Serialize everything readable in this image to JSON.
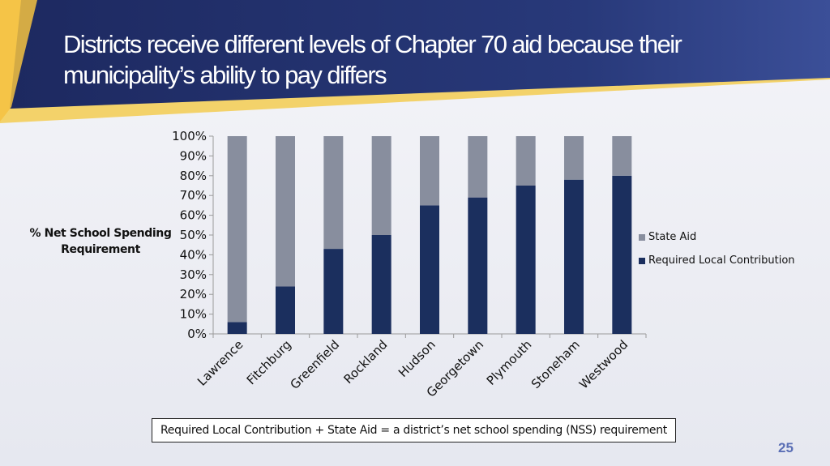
{
  "slide": {
    "title": "Districts receive different levels of Chapter 70 aid because their municipality’s ability to pay differs",
    "footnote": "Required Local Contribution + State Aid = a district’s net school spending (NSS) requirement",
    "page_number": "25"
  },
  "colors": {
    "header_dark": "#1e2a5e",
    "header_light": "#3a4f96",
    "accent_gold": "#f5c241",
    "local": "#1b2f5e",
    "state": "#888e9e"
  },
  "chart_data": {
    "type": "bar",
    "stacked": true,
    "ylabel": "% Net School Spending Requirement",
    "xlabel": "",
    "categories": [
      "Lawrence",
      "Fitchburg",
      "Greenfield",
      "Rockland",
      "Hudson",
      "Georgetown",
      "Plymouth",
      "Stoneham",
      "Westwood"
    ],
    "series": [
      {
        "name": "Required Local Contribution",
        "color": "#1b2f5e",
        "values": [
          6,
          24,
          43,
          50,
          65,
          69,
          75,
          78,
          80
        ]
      },
      {
        "name": "State Aid",
        "color": "#888e9e",
        "values": [
          94,
          76,
          57,
          50,
          35,
          31,
          25,
          22,
          20
        ]
      }
    ],
    "ylim": [
      0,
      100
    ],
    "yticks": [
      "0%",
      "10%",
      "20%",
      "30%",
      "40%",
      "50%",
      "60%",
      "70%",
      "80%",
      "90%",
      "100%"
    ],
    "legend": [
      "State Aid",
      "Required Local Contribution"
    ],
    "legend_position": "right",
    "grid": false
  }
}
